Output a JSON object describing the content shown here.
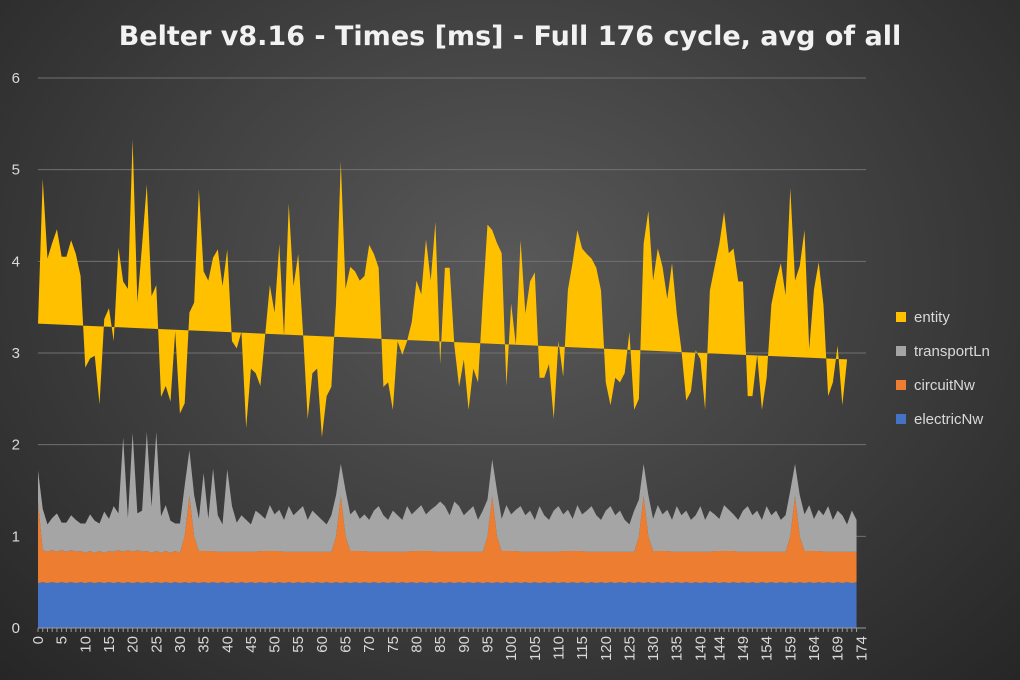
{
  "chart_data": {
    "type": "area",
    "stacked": true,
    "title": "Belter v8.16 - Times [ms] - Full 176 cycle, avg of all",
    "xlabel": "",
    "ylabel": "",
    "ylim": [
      0,
      6
    ],
    "yticks": [
      0,
      1,
      2,
      3,
      4,
      5,
      6
    ],
    "xlim": [
      0,
      175
    ],
    "x_tick_labels": [
      0,
      5,
      10,
      15,
      20,
      25,
      30,
      35,
      40,
      45,
      50,
      55,
      60,
      65,
      70,
      75,
      80,
      85,
      90,
      95,
      100,
      105,
      110,
      115,
      120,
      125,
      130,
      135,
      140,
      144,
      149,
      154,
      159,
      164,
      169,
      174
    ],
    "grid": "horizontal",
    "legend_position": "right",
    "series": [
      {
        "name": "electricNw",
        "color": "#4472C4",
        "values": [
          0.49,
          0.5,
          0.49,
          0.5,
          0.49,
          0.5,
          0.49,
          0.5,
          0.49,
          0.5,
          0.49,
          0.5,
          0.49,
          0.5,
          0.49,
          0.5,
          0.49,
          0.5,
          0.49,
          0.5,
          0.49,
          0.5,
          0.49,
          0.5,
          0.49,
          0.5,
          0.49,
          0.5,
          0.49,
          0.5,
          0.49,
          0.5,
          0.49,
          0.5,
          0.49,
          0.5,
          0.49,
          0.5,
          0.49,
          0.5,
          0.49,
          0.5,
          0.49,
          0.5,
          0.49,
          0.5,
          0.49,
          0.5,
          0.49,
          0.5,
          0.49,
          0.5,
          0.49,
          0.5,
          0.49,
          0.5,
          0.49,
          0.5,
          0.49,
          0.5,
          0.49,
          0.5,
          0.49,
          0.5,
          0.49,
          0.5,
          0.49,
          0.5,
          0.49,
          0.5,
          0.49,
          0.5,
          0.49,
          0.5,
          0.49,
          0.5,
          0.49,
          0.5,
          0.49,
          0.5,
          0.49,
          0.5,
          0.49,
          0.5,
          0.49,
          0.5,
          0.49,
          0.5,
          0.49,
          0.5,
          0.49,
          0.5,
          0.49,
          0.5,
          0.49,
          0.5,
          0.49,
          0.5,
          0.49,
          0.5,
          0.49,
          0.5,
          0.49,
          0.5,
          0.49,
          0.5,
          0.49,
          0.5,
          0.49,
          0.5,
          0.49,
          0.5,
          0.49,
          0.5,
          0.49,
          0.5,
          0.49,
          0.5,
          0.49,
          0.5,
          0.49,
          0.5,
          0.49,
          0.5,
          0.49,
          0.5,
          0.49,
          0.5,
          0.49,
          0.5,
          0.49,
          0.5,
          0.49,
          0.5,
          0.49,
          0.5,
          0.49,
          0.5,
          0.49,
          0.5,
          0.49,
          0.5,
          0.49,
          0.5,
          0.49,
          0.5,
          0.49,
          0.5,
          0.49,
          0.5,
          0.49,
          0.5,
          0.49,
          0.5,
          0.49,
          0.5,
          0.49,
          0.5,
          0.49,
          0.5,
          0.49,
          0.5,
          0.49,
          0.5,
          0.49,
          0.5,
          0.49,
          0.5,
          0.49,
          0.5,
          0.49,
          0.5,
          0.49,
          0.5
        ]
      },
      {
        "name": "circuitNw",
        "color": "#ED7D31",
        "values": [
          0.88,
          0.35,
          0.34,
          0.35,
          0.34,
          0.35,
          0.34,
          0.35,
          0.34,
          0.34,
          0.33,
          0.34,
          0.33,
          0.34,
          0.33,
          0.34,
          0.34,
          0.35,
          0.34,
          0.35,
          0.34,
          0.35,
          0.34,
          0.34,
          0.33,
          0.34,
          0.33,
          0.34,
          0.33,
          0.34,
          0.33,
          0.5,
          0.95,
          0.5,
          0.35,
          0.34,
          0.35,
          0.34,
          0.34,
          0.33,
          0.34,
          0.33,
          0.34,
          0.33,
          0.34,
          0.33,
          0.34,
          0.34,
          0.35,
          0.34,
          0.35,
          0.34,
          0.34,
          0.33,
          0.34,
          0.33,
          0.34,
          0.33,
          0.34,
          0.33,
          0.34,
          0.33,
          0.34,
          0.5,
          0.95,
          0.5,
          0.35,
          0.34,
          0.35,
          0.34,
          0.34,
          0.33,
          0.34,
          0.33,
          0.34,
          0.33,
          0.34,
          0.33,
          0.34,
          0.34,
          0.35,
          0.34,
          0.35,
          0.34,
          0.34,
          0.33,
          0.34,
          0.33,
          0.34,
          0.33,
          0.34,
          0.33,
          0.34,
          0.33,
          0.34,
          0.5,
          0.95,
          0.5,
          0.35,
          0.34,
          0.35,
          0.34,
          0.34,
          0.33,
          0.34,
          0.33,
          0.34,
          0.33,
          0.34,
          0.33,
          0.34,
          0.34,
          0.35,
          0.34,
          0.35,
          0.34,
          0.34,
          0.33,
          0.34,
          0.33,
          0.34,
          0.33,
          0.34,
          0.33,
          0.34,
          0.33,
          0.34,
          0.5,
          0.95,
          0.5,
          0.35,
          0.34,
          0.35,
          0.34,
          0.34,
          0.33,
          0.34,
          0.33,
          0.34,
          0.33,
          0.34,
          0.33,
          0.34,
          0.34,
          0.35,
          0.34,
          0.35,
          0.34,
          0.34,
          0.33,
          0.34,
          0.33,
          0.34,
          0.33,
          0.34,
          0.33,
          0.34,
          0.33,
          0.34,
          0.5,
          0.95,
          0.5,
          0.35,
          0.34,
          0.35,
          0.34,
          0.34,
          0.33,
          0.34,
          0.33,
          0.34,
          0.33,
          0.34,
          0.33,
          0.34,
          0.34
        ]
      },
      {
        "name": "transportLn",
        "color": "#A5A5A5",
        "values": [
          0.35,
          0.45,
          0.3,
          0.35,
          0.42,
          0.3,
          0.32,
          0.38,
          0.35,
          0.3,
          0.32,
          0.4,
          0.35,
          0.3,
          0.45,
          0.35,
          0.5,
          0.4,
          1.25,
          0.35,
          1.3,
          0.4,
          0.45,
          1.3,
          0.5,
          1.3,
          0.4,
          0.5,
          0.35,
          0.3,
          0.32,
          0.55,
          0.5,
          0.45,
          0.35,
          0.85,
          0.35,
          0.9,
          0.4,
          0.3,
          0.9,
          0.5,
          0.32,
          0.4,
          0.35,
          0.3,
          0.45,
          0.4,
          0.35,
          0.5,
          0.4,
          0.45,
          0.35,
          0.5,
          0.4,
          0.45,
          0.5,
          0.35,
          0.45,
          0.4,
          0.35,
          0.3,
          0.4,
          0.45,
          0.35,
          0.5,
          0.4,
          0.45,
          0.35,
          0.4,
          0.35,
          0.45,
          0.5,
          0.4,
          0.35,
          0.45,
          0.4,
          0.35,
          0.5,
          0.4,
          0.45,
          0.5,
          0.4,
          0.45,
          0.5,
          0.55,
          0.5,
          0.4,
          0.55,
          0.5,
          0.4,
          0.45,
          0.5,
          0.35,
          0.45,
          0.4,
          0.4,
          0.5,
          0.35,
          0.5,
          0.4,
          0.45,
          0.5,
          0.4,
          0.45,
          0.35,
          0.5,
          0.4,
          0.35,
          0.45,
          0.5,
          0.4,
          0.45,
          0.35,
          0.5,
          0.4,
          0.45,
          0.5,
          0.4,
          0.35,
          0.45,
          0.5,
          0.4,
          0.45,
          0.35,
          0.3,
          0.45,
          0.4,
          0.35,
          0.45,
          0.35,
          0.5,
          0.4,
          0.45,
          0.35,
          0.5,
          0.4,
          0.45,
          0.35,
          0.4,
          0.5,
          0.35,
          0.45,
          0.4,
          0.35,
          0.5,
          0.45,
          0.4,
          0.35,
          0.45,
          0.5,
          0.4,
          0.45,
          0.35,
          0.5,
          0.4,
          0.45,
          0.35,
          0.4,
          0.5,
          0.35,
          0.45,
          0.4,
          0.5,
          0.35,
          0.45,
          0.4,
          0.5,
          0.35,
          0.45,
          0.4,
          0.3,
          0.45,
          0.35,
          0.4,
          0.3
        ]
      },
      {
        "name": "entity",
        "color": "#FFC000",
        "values": [
          1.6,
          3.6,
          2.9,
          3.0,
          3.1,
          2.9,
          2.9,
          3.0,
          2.9,
          2.7,
          1.7,
          1.7,
          1.8,
          1.3,
          2.1,
          2.3,
          1.8,
          2.9,
          1.7,
          2.5,
          3.2,
          2.3,
          2.9,
          2.7,
          2.3,
          1.6,
          1.3,
          1.3,
          1.3,
          2.1,
          1.2,
          0.9,
          1.5,
          2.1,
          3.6,
          2.2,
          2.6,
          2.3,
          2.9,
          2.6,
          2.4,
          1.8,
          1.9,
          2.0,
          1.0,
          1.7,
          1.5,
          1.4,
          2.0,
          2.4,
          2.2,
          2.9,
          2.0,
          3.3,
          2.5,
          2.8,
          1.9,
          1.1,
          1.5,
          1.6,
          0.9,
          1.4,
          1.4,
          2.1,
          3.3,
          2.2,
          2.7,
          2.6,
          2.6,
          2.6,
          3.0,
          2.8,
          2.6,
          1.4,
          1.5,
          1.1,
          1.9,
          1.8,
          1.8,
          2.1,
          2.5,
          2.3,
          3.0,
          2.5,
          3.1,
          1.5,
          2.6,
          2.7,
          1.7,
          1.3,
          1.7,
          1.1,
          1.5,
          1.5,
          2.3,
          3.0,
          2.5,
          2.7,
          2.9,
          1.3,
          2.3,
          1.8,
          2.9,
          2.2,
          2.5,
          2.7,
          1.4,
          1.5,
          1.7,
          1.0,
          1.8,
          1.5,
          2.4,
          2.8,
          3.0,
          2.9,
          2.8,
          2.7,
          2.7,
          2.5,
          1.4,
          1.1,
          1.5,
          1.4,
          1.6,
          2.1,
          1.1,
          1.1,
          2.4,
          3.1,
          2.6,
          2.8,
          2.7,
          2.3,
          2.8,
          2.1,
          1.8,
          1.2,
          1.4,
          1.8,
          1.6,
          1.2,
          2.4,
          2.7,
          3.0,
          3.2,
          2.8,
          2.9,
          2.6,
          2.5,
          1.2,
          1.3,
          1.7,
          1.2,
          1.4,
          2.3,
          2.5,
          2.8,
          2.4,
          3.3,
          2.0,
          2.5,
          3.1,
          1.7,
          2.5,
          2.7,
          2.3,
          1.2,
          1.5,
          1.8,
          1.2,
          1.8
        ]
      }
    ]
  }
}
